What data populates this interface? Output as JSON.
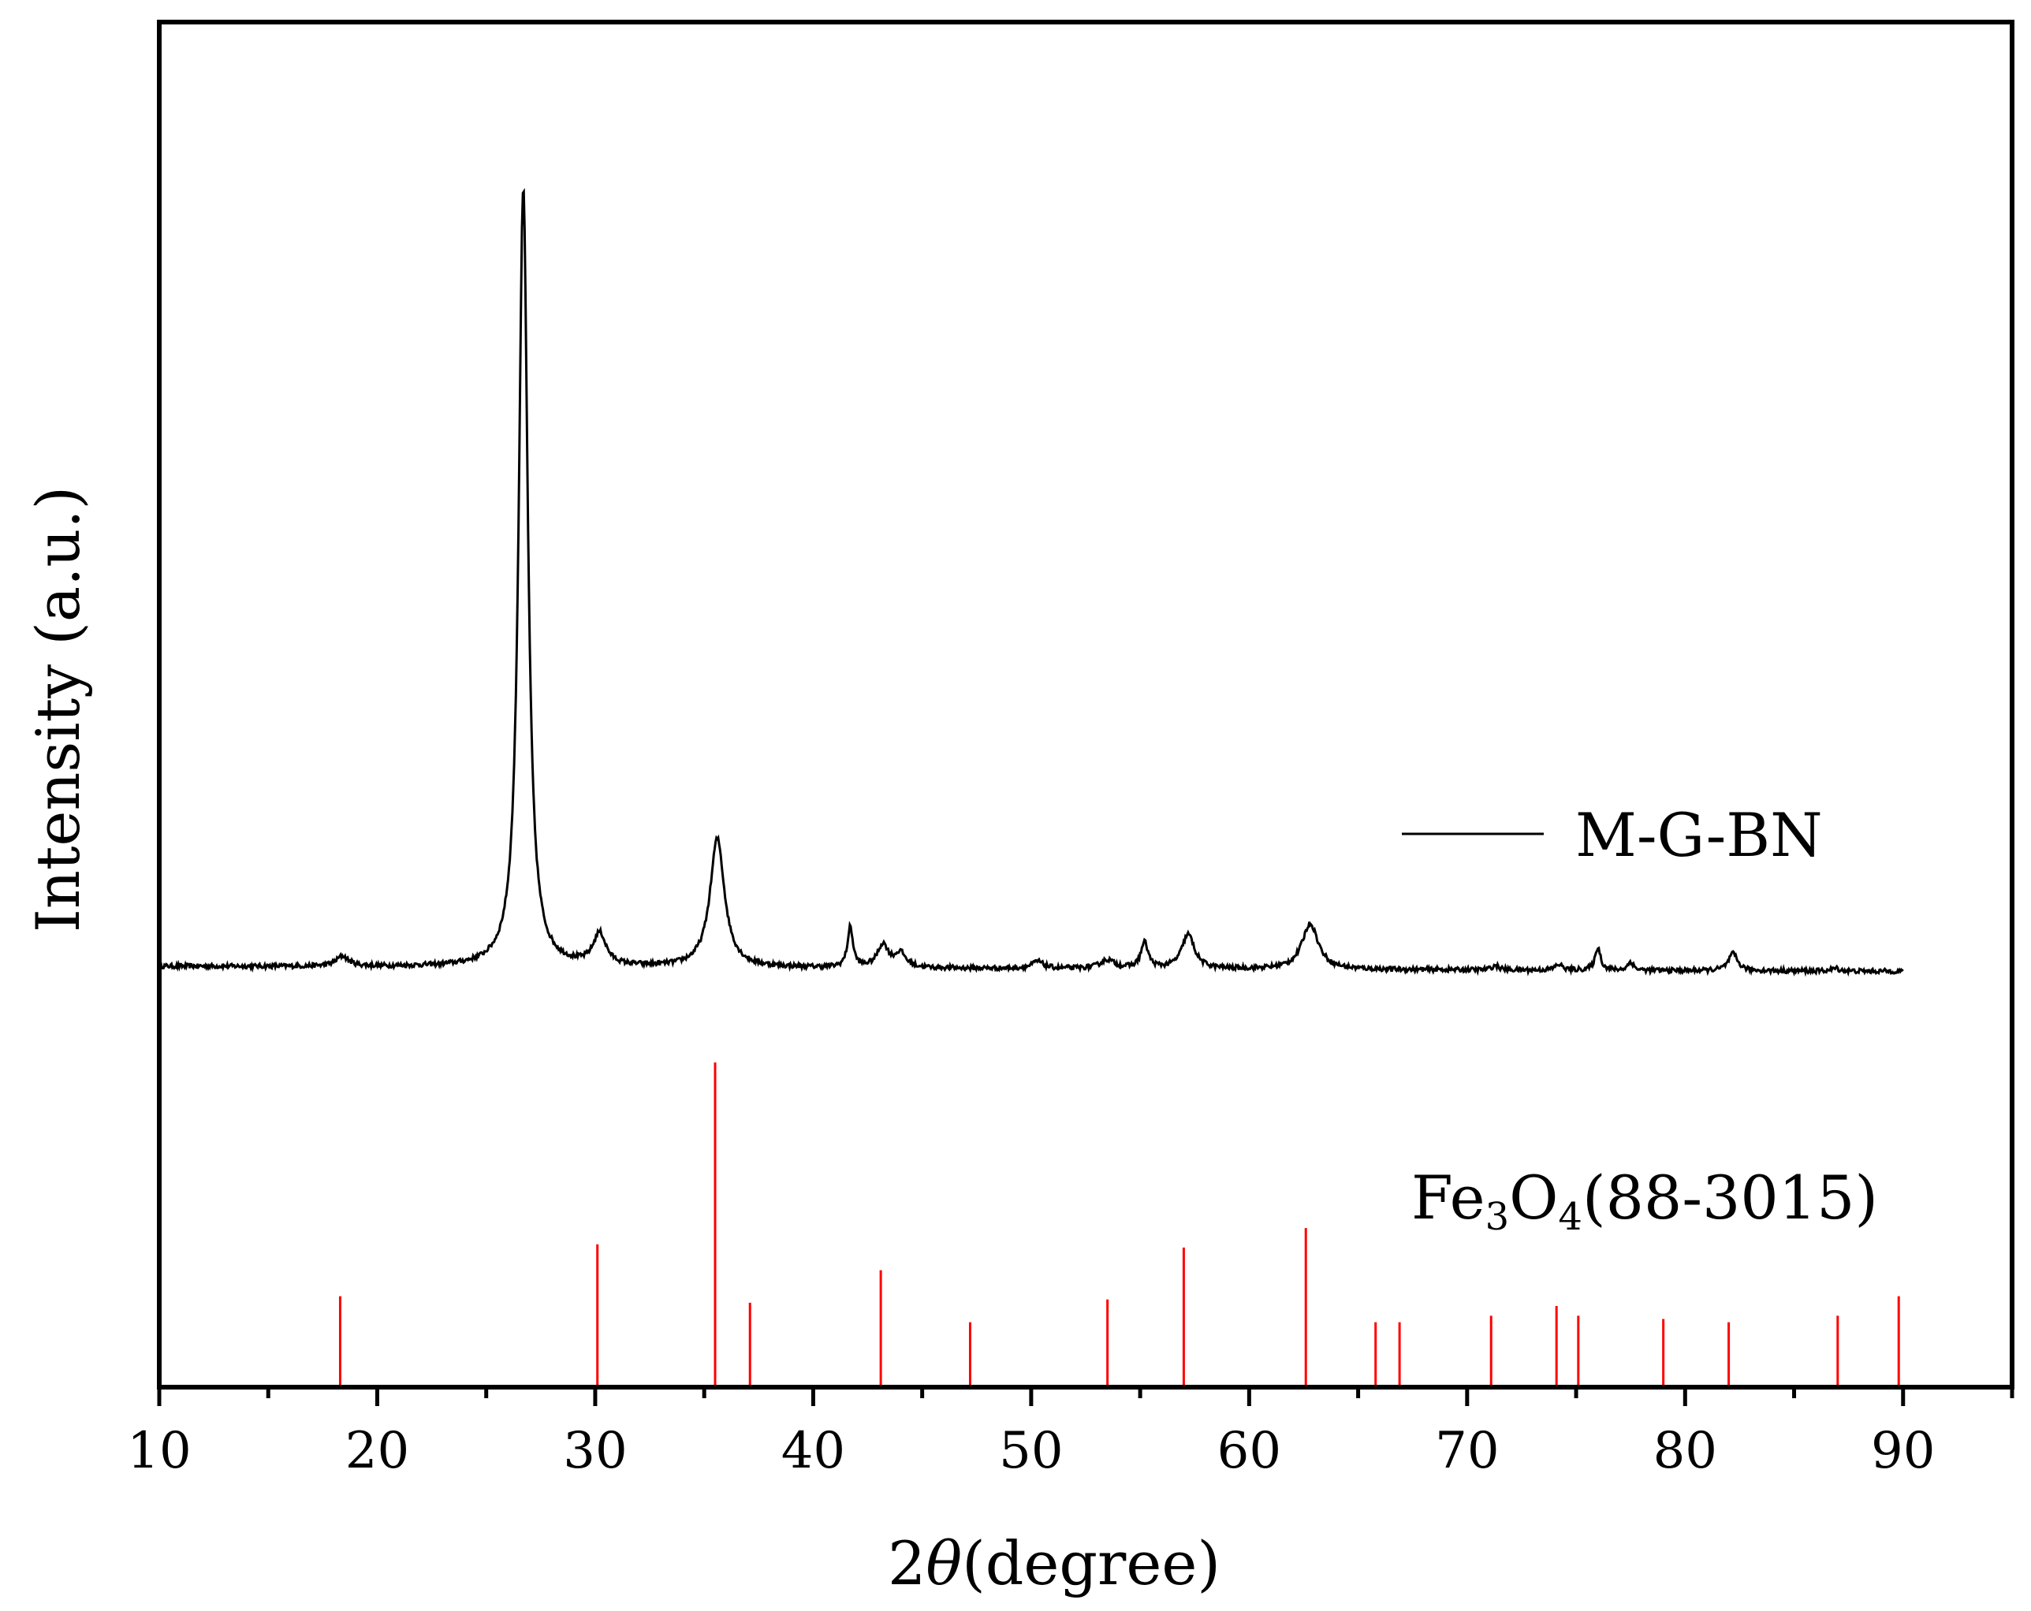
{
  "chart_data": {
    "type": "line",
    "xlabel_prefix": "2",
    "xlabel_symbol": "θ",
    "xlabel_suffix": "(degree)",
    "ylabel": "Intensity (a.u.)",
    "xlim": [
      10,
      95
    ],
    "xticks": [
      10,
      20,
      30,
      40,
      50,
      60,
      70,
      80,
      90
    ],
    "grid": false,
    "legend_position": "right",
    "series": [
      {
        "name": "M-G-BN",
        "color": "#000000",
        "baseline": 2.0,
        "noise_amplitude": 0.08,
        "x_range": [
          10,
          90
        ],
        "peaks": [
          {
            "x": 18.4,
            "height": 0.35,
            "width": 0.35
          },
          {
            "x": 26.7,
            "height": 27.2,
            "width": 0.25
          },
          {
            "x": 30.2,
            "height": 1.1,
            "width": 0.35
          },
          {
            "x": 35.6,
            "height": 4.5,
            "width": 0.4
          },
          {
            "x": 41.7,
            "height": 1.4,
            "width": 0.15
          },
          {
            "x": 43.2,
            "height": 0.8,
            "width": 0.3
          },
          {
            "x": 44.0,
            "height": 0.5,
            "width": 0.3
          },
          {
            "x": 50.3,
            "height": 0.25,
            "width": 0.3
          },
          {
            "x": 53.5,
            "height": 0.3,
            "width": 0.4
          },
          {
            "x": 55.2,
            "height": 0.9,
            "width": 0.2
          },
          {
            "x": 57.2,
            "height": 1.2,
            "width": 0.35
          },
          {
            "x": 62.8,
            "height": 1.6,
            "width": 0.45
          },
          {
            "x": 71.3,
            "height": 0.15,
            "width": 0.2
          },
          {
            "x": 74.2,
            "height": 0.2,
            "width": 0.2
          },
          {
            "x": 76.0,
            "height": 0.8,
            "width": 0.15
          },
          {
            "x": 77.5,
            "height": 0.3,
            "width": 0.15
          },
          {
            "x": 82.2,
            "height": 0.6,
            "width": 0.25
          },
          {
            "x": 86.9,
            "height": 0.1,
            "width": 0.2
          }
        ]
      }
    ],
    "reference": {
      "label_main": "Fe",
      "label_sub1": "3",
      "label_mid": "O",
      "label_sub2": "4",
      "label_suffix": "(88-3015)",
      "color": "#ff0000",
      "lines": [
        {
          "x": 18.3,
          "intensity": 0.28
        },
        {
          "x": 30.1,
          "intensity": 0.44
        },
        {
          "x": 35.5,
          "intensity": 1.0
        },
        {
          "x": 37.1,
          "intensity": 0.26
        },
        {
          "x": 43.1,
          "intensity": 0.36
        },
        {
          "x": 47.2,
          "intensity": 0.2
        },
        {
          "x": 53.5,
          "intensity": 0.27
        },
        {
          "x": 57.0,
          "intensity": 0.43
        },
        {
          "x": 62.6,
          "intensity": 0.49
        },
        {
          "x": 65.8,
          "intensity": 0.2
        },
        {
          "x": 66.9,
          "intensity": 0.2
        },
        {
          "x": 71.1,
          "intensity": 0.22
        },
        {
          "x": 74.1,
          "intensity": 0.25
        },
        {
          "x": 75.1,
          "intensity": 0.22
        },
        {
          "x": 79.0,
          "intensity": 0.21
        },
        {
          "x": 82.0,
          "intensity": 0.2
        },
        {
          "x": 87.0,
          "intensity": 0.22
        },
        {
          "x": 89.8,
          "intensity": 0.28
        }
      ]
    }
  }
}
